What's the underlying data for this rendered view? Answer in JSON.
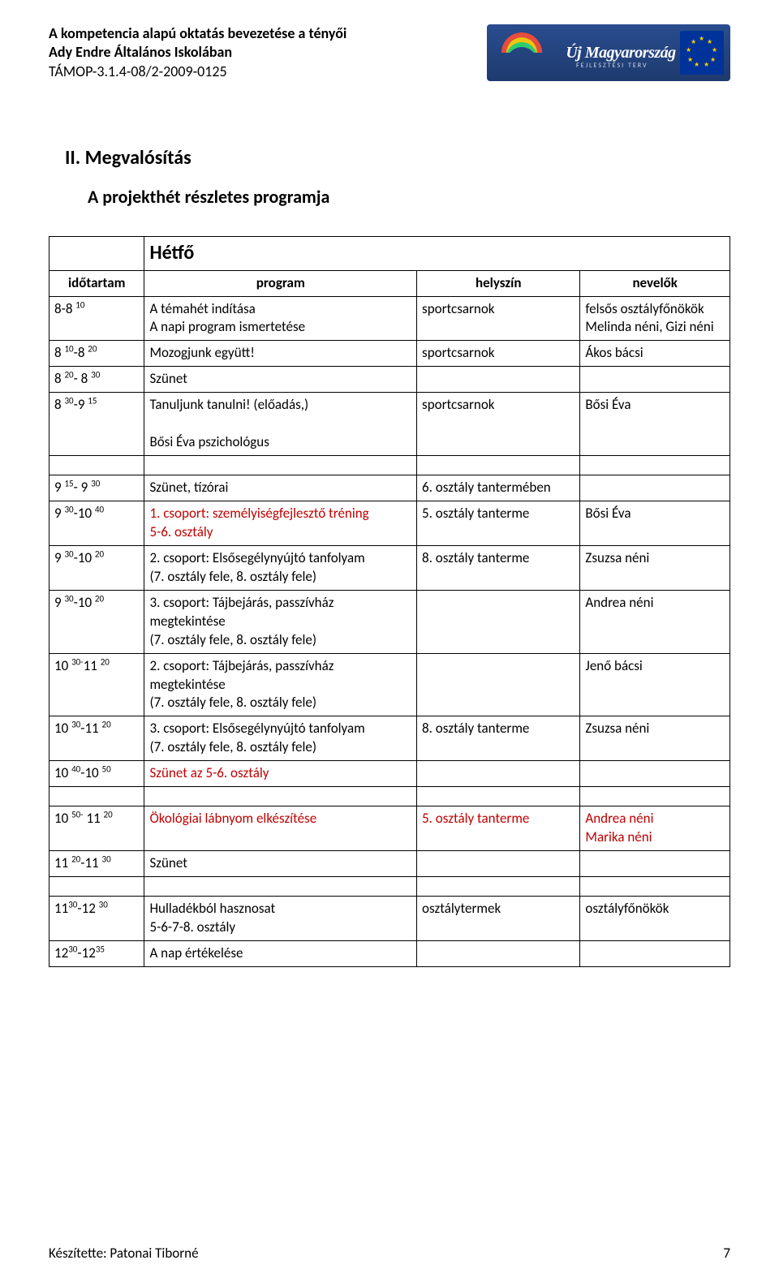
{
  "header": {
    "line1": "A kompetencia alapú oktatás bevezetése a tényői",
    "line2": "Ady Endre Általános Iskolában",
    "line3": "TÁMOP-3.1.4-08/2-2009-0125",
    "logo_text": "Új Magyarország",
    "logo_sub": "FEJLESZTÉSI TERV"
  },
  "section_title": "II.  Megvalósítás",
  "subsection_title": "A projekthét részletes programja",
  "day": "Hétfő",
  "columns": {
    "time": "időtartam",
    "program": "program",
    "location": "helyszín",
    "who": "nevelők"
  },
  "rows": [
    {
      "time_html": "8-8 <sup>10</sup>",
      "program": "A témahét indítása\nA napi program ismertetése",
      "location": "sportcsarnok",
      "who": "felsős osztályfőnökök\nMelinda néni, Gizi néni"
    },
    {
      "time_html": "8 <sup>10</sup>-8 <sup>20</sup>",
      "program": "Mozogjunk együtt!",
      "location": "sportcsarnok",
      "who": "Ákos bácsi"
    },
    {
      "time_html": "8 <sup>20</sup>- 8 <sup>30</sup>",
      "program": "Szünet",
      "location": "",
      "who": ""
    },
    {
      "time_html": "8 <sup>30</sup>-9 <sup>15</sup>",
      "program": "Tanuljunk tanulni! (előadás,)\n\n  Bősi Éva pszichológus",
      "location": "sportcsarnok",
      "who": "Bősi Éva"
    },
    {
      "spacer": true
    },
    {
      "time_html": "9 <sup>15</sup>- 9 <sup>30</sup>",
      "program": "Szünet, tízórai",
      "location": "6. osztály tantermében",
      "who": ""
    },
    {
      "time_html": "9 <sup>30</sup>-10 <sup>40</sup>",
      "program_red": "1. csoport: személyiségfejlesztő tréning\n5-6. osztály",
      "location": "5. osztály tanterme",
      "who": "Bősi Éva"
    },
    {
      "time_html": "9 <sup>30</sup>-10 <sup>20</sup>",
      "program": "2. csoport: Elsősegélynyújtó tanfolyam\n(7. osztály fele, 8. osztály fele)",
      "location": "8. osztály tanterme",
      "who": "Zsuzsa néni"
    },
    {
      "time_html": "9 <sup>30</sup>-10 <sup>20</sup>",
      "program": "3. csoport: Tájbejárás, passzívház megtekintése\n(7. osztály fele, 8. osztály fele)",
      "location": "",
      "who": "Andrea néni"
    },
    {
      "time_html": "10 <sup>30-</sup>11 <sup>20</sup>",
      "program": "2. csoport: Tájbejárás, passzívház megtekintése\n(7. osztály fele, 8. osztály fele)",
      "location": "",
      "who": "Jenő bácsi"
    },
    {
      "time_html": "10 <sup>30</sup>-11 <sup>20</sup>",
      "program": "3. csoport: Elsősegélynyújtó tanfolyam\n(7. osztály fele, 8. osztály fele)",
      "location": "8. osztály tanterme",
      "who": "Zsuzsa néni"
    },
    {
      "time_html": "10 <sup>40</sup>-10 <sup>50</sup>",
      "program_red": "Szünet az 5-6. osztály",
      "location": "",
      "who": ""
    },
    {
      "spacer": true
    },
    {
      "time_html": "10 <sup>50-</sup> 11 <sup>20</sup>",
      "program_red": "Ökológiai lábnyom elkészítése",
      "location_red": "5. osztály tanterme",
      "who_red": "Andrea néni\n Marika néni"
    },
    {
      "time_html": "11 <sup>20</sup>-11 <sup>30</sup>",
      "program": "Szünet",
      "location": "",
      "who": ""
    },
    {
      "spacer": true
    },
    {
      "time_html": "11<sup>30</sup>-12 <sup>30</sup>",
      "program": "Hulladékból hasznosat\n5-6-7-8. osztály",
      "location": "osztálytermek",
      "who": "osztályfőnökök"
    },
    {
      "time_html": "12<sup>30</sup>-12<sup>35</sup>",
      "program": "A nap értékelése",
      "location": "",
      "who": ""
    }
  ],
  "footer": {
    "author": "Készítette: Patonai Tiborné",
    "page": "7"
  }
}
